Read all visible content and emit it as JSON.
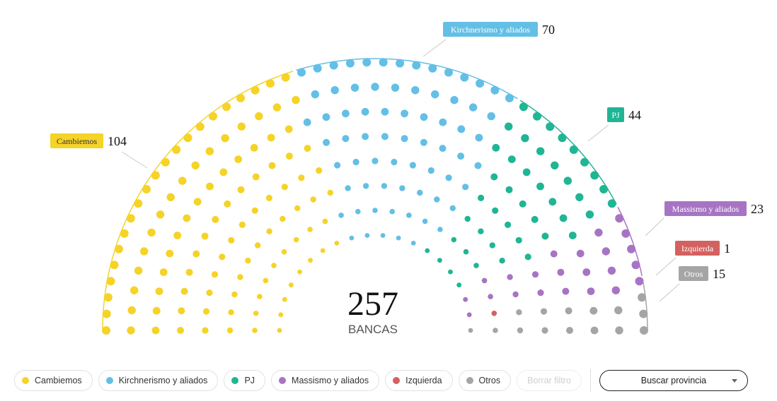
{
  "chart_data": {
    "type": "parliament",
    "total": 257,
    "total_label": "BANCAS",
    "series": [
      {
        "name": "Cambiemos",
        "value": 104,
        "color": "#f5d327"
      },
      {
        "name": "Kirchnerismo y aliados",
        "value": 70,
        "color": "#63bfe5"
      },
      {
        "name": "PJ",
        "value": 44,
        "color": "#1fb595"
      },
      {
        "name": "Massismo y aliados",
        "value": 23,
        "color": "#a774c4"
      },
      {
        "name": "Izquierda",
        "value": 1,
        "color": "#d26160"
      },
      {
        "name": "Otros",
        "value": 15,
        "color": "#a5a5a5"
      }
    ]
  },
  "legend": {
    "items": [
      {
        "label": "Cambiemos",
        "color": "#f5d327"
      },
      {
        "label": "Kirchnerismo y aliados",
        "color": "#63bfe5"
      },
      {
        "label": "PJ",
        "color": "#1fb595"
      },
      {
        "label": "Massismo y aliados",
        "color": "#a774c4"
      },
      {
        "label": "Izquierda",
        "color": "#d26160"
      },
      {
        "label": "Otros",
        "color": "#a5a5a5"
      }
    ],
    "clear_label": "Borrar filtro"
  },
  "search": {
    "label": "Buscar provincia"
  }
}
